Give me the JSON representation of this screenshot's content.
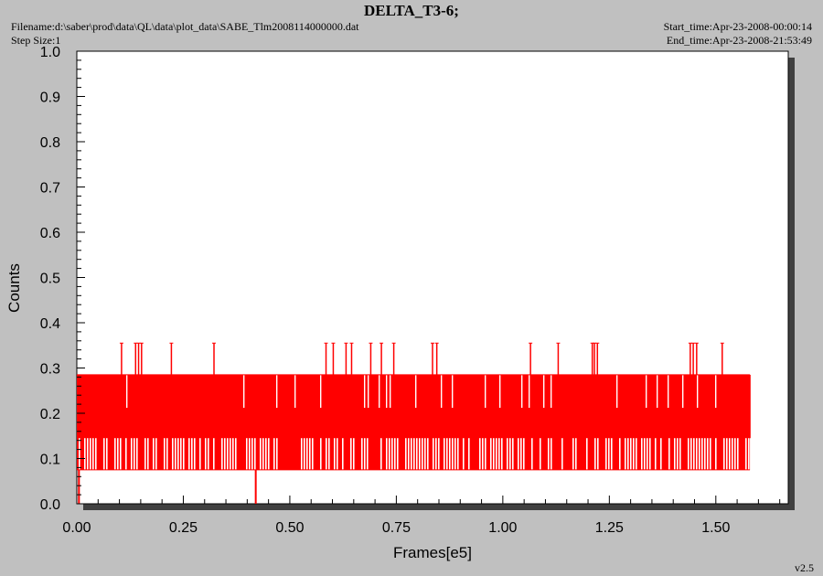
{
  "header": {
    "title": "DELTA_T3-6;",
    "filename": "Filename:d:\\saber\\prod\\data\\QL\\data\\plot_data\\SABE_Tlm2008114000000.dat",
    "step_size": "Step Size:1",
    "start_time": "Start_time:Apr-23-2008-00:00:14",
    "end_time": "End_time:Apr-23-2008-21:53:49"
  },
  "footer": {
    "version": "v2.5"
  },
  "colors": {
    "series": "#ff0000",
    "plot_bg": "#ffffff",
    "page_bg": "#c0c0c0"
  },
  "chart_data": {
    "type": "line",
    "title": "DELTA_T3-6;",
    "xlabel": "Frames[e5]",
    "ylabel": "Counts",
    "xlim": [
      0,
      1.67
    ],
    "ylim": [
      0,
      1.0
    ],
    "grid": false,
    "x_ticks": [
      "0.00",
      "0.25",
      "0.50",
      "0.75",
      "1.00",
      "1.25",
      "1.50"
    ],
    "y_ticks": [
      "0.0",
      "0.1",
      "0.2",
      "0.3",
      "0.4",
      "0.5",
      "0.6",
      "0.7",
      "0.8",
      "0.9",
      "1.0"
    ],
    "series": [
      {
        "color": "#ff0000",
        "x_range": [
          0,
          1.58
        ],
        "band_high": 0.285,
        "band_mid_upper": 0.21,
        "band_mid_lower": 0.145,
        "band_low": 0.075,
        "spikes_x": [
          0.105,
          0.138,
          0.145,
          0.152,
          0.222,
          0.322,
          0.585,
          0.602,
          0.632,
          0.645,
          0.69,
          0.715,
          0.744,
          0.835,
          0.845,
          1.065,
          1.13,
          1.21,
          1.215,
          1.222,
          1.44,
          1.447,
          1.455,
          1.515
        ],
        "spike_value": 0.355,
        "dips_x": [
          0.005,
          0.42
        ],
        "dip_value": 0.0
      }
    ]
  }
}
